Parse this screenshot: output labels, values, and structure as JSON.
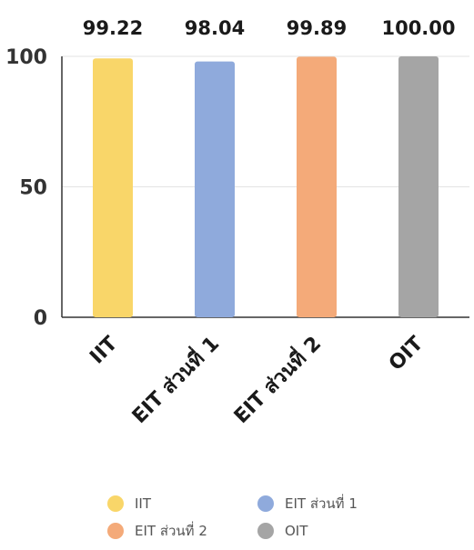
{
  "chart_data": {
    "type": "bar",
    "categories": [
      "IIT",
      "EIT ส่วนที่ 1",
      "EIT ส่วนที่ 2",
      "OIT"
    ],
    "values": [
      99.22,
      98.04,
      99.89,
      100.0
    ],
    "data_labels": [
      "99.22",
      "98.04",
      "99.89",
      "100.00"
    ],
    "colors": [
      "#F9D669",
      "#8FAADC",
      "#F4AA79",
      "#A5A5A5"
    ],
    "yticks": [
      "0",
      "50",
      "100"
    ],
    "ytick_values": [
      0,
      50,
      100
    ],
    "ylim": [
      0,
      100
    ],
    "grid": true,
    "legend_position": "bottom",
    "title": "",
    "xlabel": "",
    "ylabel": ""
  },
  "legend": {
    "items": [
      {
        "label": "IIT",
        "color": "#F9D669"
      },
      {
        "label": "EIT ส่วนที่ 1",
        "color": "#8FAADC"
      },
      {
        "label": "EIT ส่วนที่ 2",
        "color": "#F4AA79"
      },
      {
        "label": "OIT",
        "color": "#A5A5A5"
      }
    ]
  }
}
